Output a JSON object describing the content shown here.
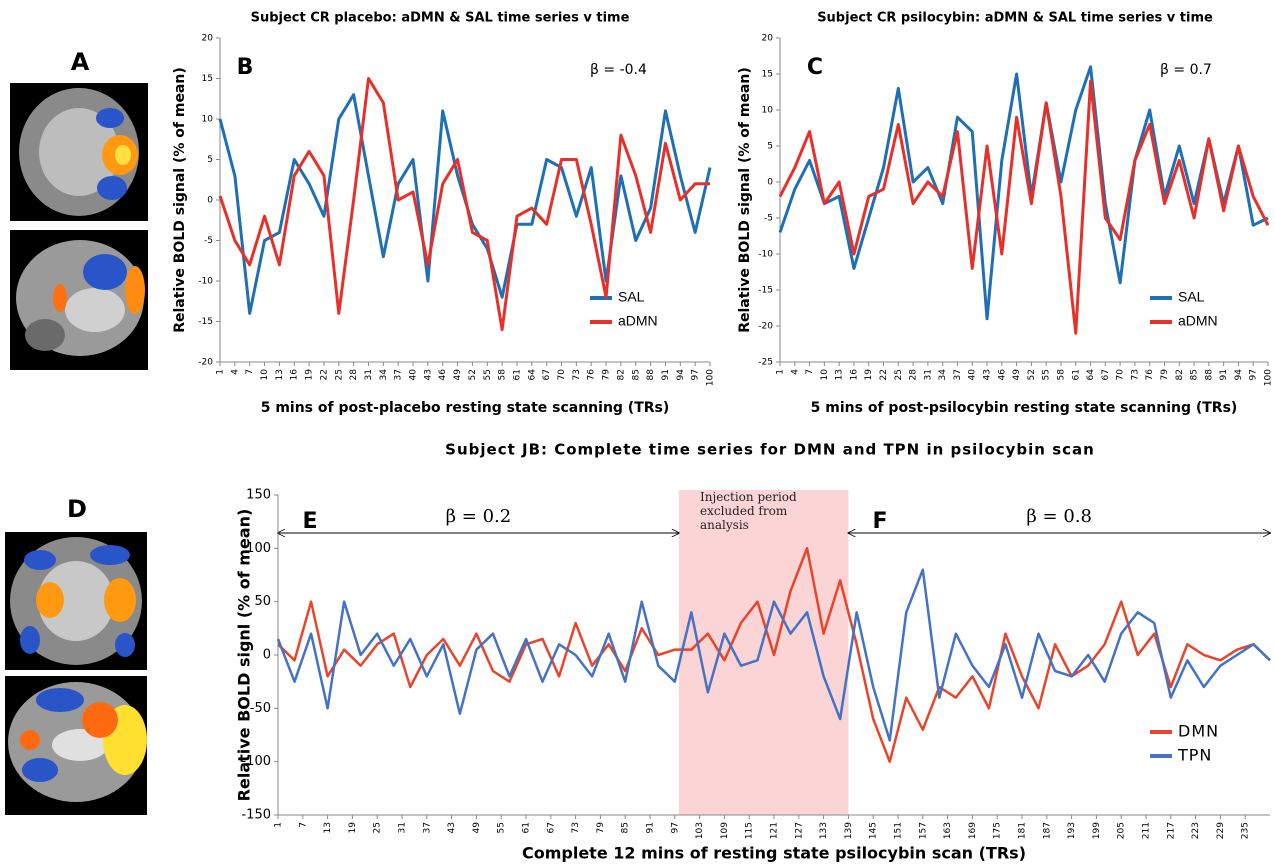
{
  "figure_labels": [
    "A",
    "D"
  ],
  "chart_data": [
    {
      "type": "line",
      "title": "Subject CR placebo: aDMN & SAL time series v time",
      "panel_label": "B",
      "annotation": "β = -0.4",
      "xlabel": "5 mins of post-placebo resting state scanning (TRs)",
      "ylabel": "Relative BOLD signal (% of mean)",
      "x": [
        1,
        4,
        7,
        10,
        13,
        16,
        19,
        22,
        25,
        28,
        31,
        34,
        37,
        40,
        43,
        46,
        49,
        52,
        55,
        58,
        61,
        64,
        67,
        70,
        73,
        76,
        79,
        82,
        85,
        88,
        91,
        94,
        97,
        100
      ],
      "series": [
        {
          "name": "SAL",
          "color": "#1f6fb5",
          "values": [
            10,
            3,
            -14,
            -5,
            -4,
            5,
            2,
            -2,
            10,
            13,
            3,
            -7,
            2,
            5,
            -10,
            11,
            3,
            -3,
            -6,
            -12,
            -3,
            -3,
            5,
            4,
            -2,
            4,
            -10,
            3,
            -5,
            -1,
            11,
            3,
            -4,
            4
          ]
        },
        {
          "name": "aDMN",
          "color": "#e8302a",
          "values": [
            0.5,
            -5,
            -8,
            -2,
            -8,
            3,
            6,
            3,
            -14,
            0,
            15,
            12,
            0,
            1,
            -8,
            2,
            5,
            -4,
            -5,
            -16,
            -2,
            -1,
            -3,
            5,
            5,
            -3,
            -12,
            8,
            3,
            -4,
            7,
            0,
            2,
            2
          ]
        }
      ],
      "xlim": [
        1,
        100
      ],
      "xticks": [
        1,
        4,
        7,
        10,
        13,
        16,
        19,
        22,
        25,
        28,
        31,
        34,
        37,
        40,
        43,
        46,
        49,
        52,
        55,
        58,
        61,
        64,
        67,
        70,
        73,
        76,
        79,
        82,
        85,
        88,
        91,
        94,
        97,
        100
      ],
      "ylim": [
        -20,
        20
      ],
      "yticks": [
        -20,
        -15,
        -10,
        -5,
        0,
        5,
        10,
        15,
        20
      ],
      "legend": "lower right"
    },
    {
      "type": "line",
      "title": "Subject CR psilocybin: aDMN & SAL time series v time",
      "panel_label": "C",
      "annotation": "β = 0.7",
      "xlabel": "5 mins of post-psilocybin resting state scanning (TRs)",
      "ylabel": "Relative BOLD signal (% of mean)",
      "x": [
        1,
        4,
        7,
        10,
        13,
        16,
        19,
        22,
        25,
        28,
        31,
        34,
        37,
        40,
        43,
        46,
        49,
        52,
        55,
        58,
        61,
        64,
        67,
        70,
        73,
        76,
        79,
        82,
        85,
        88,
        91,
        94,
        97,
        100
      ],
      "series": [
        {
          "name": "SAL",
          "color": "#1f6fb5",
          "values": [
            -7,
            -1,
            3,
            -3,
            -2,
            -12,
            -5,
            2,
            13,
            0,
            2,
            -3,
            9,
            7,
            -19,
            3,
            15,
            -2,
            11,
            0,
            10,
            16,
            -3,
            -14,
            3,
            10,
            -2,
            5,
            -3,
            6,
            -3,
            5,
            -6,
            -5
          ]
        },
        {
          "name": "aDMN",
          "color": "#e8302a",
          "values": [
            -2,
            2,
            7,
            -3,
            0,
            -10,
            -2,
            -1,
            8,
            -3,
            0,
            -2,
            7,
            -12,
            5,
            -10,
            9,
            -3,
            11,
            -2,
            -21,
            14,
            -5,
            -8,
            3,
            8,
            -3,
            3,
            -5,
            6,
            -4,
            5,
            -2,
            -6
          ]
        }
      ],
      "xlim": [
        1,
        100
      ],
      "xticks": [
        1,
        4,
        7,
        10,
        13,
        16,
        19,
        22,
        25,
        28,
        31,
        34,
        37,
        40,
        43,
        46,
        49,
        52,
        55,
        58,
        61,
        64,
        67,
        70,
        73,
        76,
        79,
        82,
        85,
        88,
        91,
        94,
        97,
        100
      ],
      "ylim": [
        -25,
        20
      ],
      "yticks": [
        -25,
        -20,
        -15,
        -10,
        -5,
        0,
        5,
        10,
        15,
        20
      ],
      "legend": "lower right"
    },
    {
      "type": "line",
      "title": "Subject JB: Complete time series for DMN and TPN in psilocybin scan",
      "panel_label": "E",
      "panel_label_2": "F",
      "annotations": [
        "β = 0.2",
        "β = 0.8"
      ],
      "shaded_region": {
        "x": [
          98,
          139
        ],
        "label": "Injection period excluded from analysis"
      },
      "xlabel": "Complete 12 mins of resting state psilocybin scan (TRs)",
      "ylabel": "Relative BOLD signl (% of mean)",
      "x": [
        1,
        5,
        9,
        13,
        17,
        21,
        25,
        29,
        33,
        37,
        41,
        45,
        49,
        53,
        57,
        61,
        65,
        69,
        73,
        77,
        81,
        85,
        89,
        93,
        97,
        101,
        105,
        109,
        113,
        117,
        121,
        125,
        129,
        133,
        137,
        141,
        145,
        149,
        153,
        157,
        161,
        165,
        169,
        173,
        177,
        181,
        185,
        189,
        193,
        197,
        201,
        205,
        209,
        213,
        217,
        221,
        225,
        229,
        233,
        237,
        241
      ],
      "series": [
        {
          "name": "DMN",
          "color": "#e8452a",
          "values": [
            10,
            -5,
            50,
            -20,
            5,
            -10,
            10,
            20,
            -30,
            0,
            15,
            -10,
            20,
            -15,
            -25,
            10,
            15,
            -20,
            30,
            -10,
            10,
            -15,
            25,
            0,
            5,
            5,
            20,
            -5,
            30,
            50,
            0,
            60,
            100,
            20,
            70,
            10,
            -60,
            -100,
            -40,
            -70,
            -30,
            -40,
            -20,
            -50,
            20,
            -20,
            -50,
            10,
            -20,
            -10,
            10,
            50,
            0,
            20,
            -30,
            10,
            0,
            -5,
            5,
            10,
            -5
          ]
        },
        {
          "name": "TPN",
          "color": "#4472c4",
          "values": [
            15,
            -25,
            20,
            -50,
            50,
            0,
            20,
            -10,
            15,
            -20,
            10,
            -55,
            5,
            20,
            -20,
            15,
            -25,
            10,
            0,
            -20,
            20,
            -25,
            50,
            -10,
            -25,
            40,
            -35,
            20,
            -10,
            -5,
            50,
            20,
            40,
            -20,
            -60,
            40,
            -30,
            -80,
            40,
            80,
            -40,
            20,
            -10,
            -30,
            10,
            -40,
            20,
            -15,
            -20,
            0,
            -25,
            20,
            40,
            30,
            -40,
            -5,
            -30,
            -10,
            0,
            10,
            -5
          ]
        }
      ],
      "xlim": [
        1,
        241
      ],
      "xticks": [
        1,
        7,
        13,
        19,
        25,
        31,
        37,
        43,
        49,
        55,
        61,
        67,
        73,
        79,
        85,
        91,
        97,
        103,
        109,
        115,
        121,
        127,
        133,
        139,
        145,
        151,
        157,
        163,
        169,
        175,
        181,
        187,
        193,
        199,
        205,
        211,
        217,
        223,
        229,
        235
      ],
      "ylim": [
        -150,
        150
      ],
      "yticks": [
        -150,
        -100,
        -50,
        0,
        50,
        100,
        150
      ],
      "legend": "lower right"
    }
  ]
}
